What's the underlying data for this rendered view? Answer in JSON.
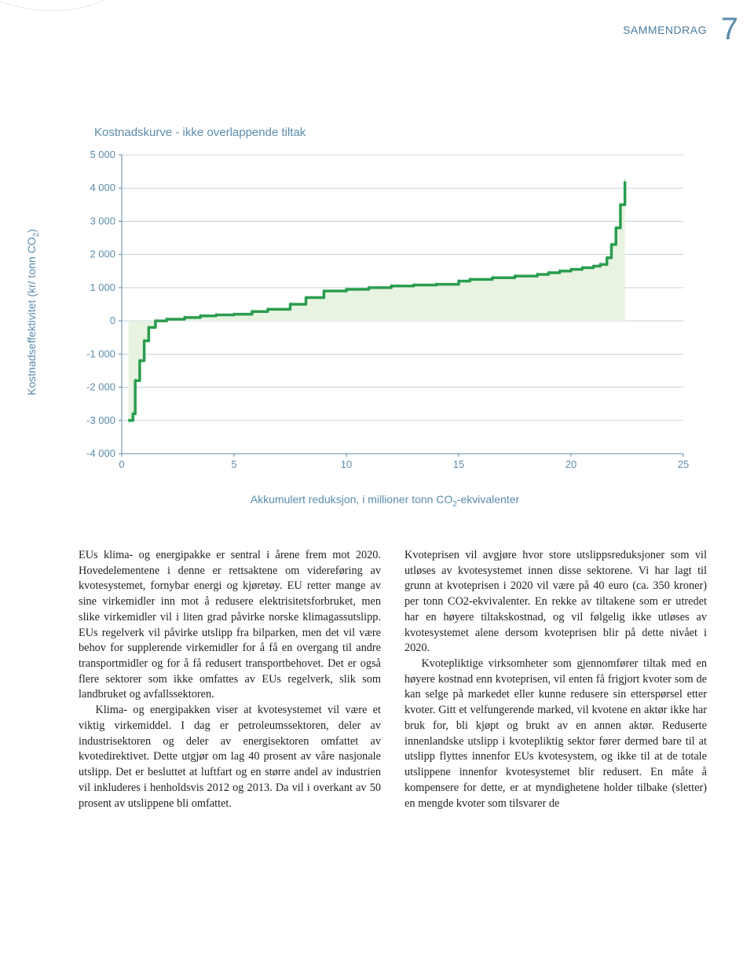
{
  "header": {
    "section_label": "SAMMENDRAG",
    "page_number": "7"
  },
  "chart": {
    "type": "step-line",
    "title": "Kostnadskurve - ikke overlappende tiltak",
    "ylabel": "Kostnadseffektivitet (kr/ tonn CO2)",
    "xlabel": "Akkumulert reduksjon, i millioner tonn CO2-ekvivalenter",
    "ylim": [
      -4000,
      5000
    ],
    "xlim": [
      0,
      25
    ],
    "ytick_step": 1000,
    "xtick_step": 5,
    "yticks": [
      "5 000",
      "4 000",
      "3 000",
      "2 000",
      "1 000",
      "0",
      "-1 000",
      "-2 000",
      "-3 000",
      "-4 000"
    ],
    "xticks": [
      "0",
      "5",
      "10",
      "15",
      "20",
      "25"
    ],
    "line_color": "#2a9d4e",
    "line_width": 3.5,
    "fill_color": "#e8f3e2",
    "fill_opacity": 1.0,
    "grid_color": "#a0b8c8",
    "grid_width": 0.6,
    "background_color": "#ffffff",
    "axis_color": "#5b8cac",
    "title_fontsize": 15,
    "label_fontsize": 14,
    "tick_fontsize": 13,
    "font_family": "Helvetica Neue",
    "font_weight": 300,
    "points": [
      [
        0.3,
        -3000
      ],
      [
        0.5,
        -2800
      ],
      [
        0.6,
        -1800
      ],
      [
        0.8,
        -1200
      ],
      [
        1.0,
        -600
      ],
      [
        1.2,
        -200
      ],
      [
        1.5,
        0
      ],
      [
        2.0,
        50
      ],
      [
        2.8,
        100
      ],
      [
        3.5,
        150
      ],
      [
        4.2,
        180
      ],
      [
        5.0,
        200
      ],
      [
        5.8,
        280
      ],
      [
        6.5,
        350
      ],
      [
        7.5,
        500
      ],
      [
        8.2,
        700
      ],
      [
        9.0,
        900
      ],
      [
        10.0,
        950
      ],
      [
        11.0,
        1000
      ],
      [
        12.0,
        1050
      ],
      [
        13.0,
        1080
      ],
      [
        14.0,
        1100
      ],
      [
        15.0,
        1200
      ],
      [
        15.5,
        1250
      ],
      [
        16.5,
        1300
      ],
      [
        17.5,
        1350
      ],
      [
        18.5,
        1400
      ],
      [
        19.0,
        1450
      ],
      [
        19.5,
        1500
      ],
      [
        20.0,
        1550
      ],
      [
        20.5,
        1600
      ],
      [
        21.0,
        1650
      ],
      [
        21.3,
        1700
      ],
      [
        21.6,
        1900
      ],
      [
        21.8,
        2300
      ],
      [
        22.0,
        2800
      ],
      [
        22.2,
        3500
      ],
      [
        22.4,
        4200
      ]
    ]
  },
  "body": {
    "col1_p1": "EUs klima- og energipakke er sentral i årene frem mot 2020. Hovedelementene i denne er rettsaktene om videreføring av kvotesystemet, fornybar energi og kjøretøy. EU retter mange av sine virkemidler inn mot å redusere elektrisitetsforbruket, men slike virkemidler vil i liten grad påvirke norske klimagassutslipp. EUs regelverk vil påvirke utslipp fra bilparken, men det vil være behov for supplerende virkemidler for å få en overgang til andre transportmidler og for å få redusert transportbehovet. Det er også flere sektorer som ikke omfattes av EUs regelverk, slik som landbruket og avfallssektoren.",
    "col1_p2": "Klima- og energipakken viser at kvotesystemet vil være et viktig virkemiddel. I dag er petroleumssektoren, deler av industrisektoren og deler av energisektoren omfattet av kvotedirektivet. Dette utgjør om lag 40 prosent av våre nasjonale utslipp. Det er besluttet at luftfart og en større andel av industrien vil inkluderes i henholdsvis 2012 og 2013. Da vil i overkant av 50 prosent av utslippene bli omfattet.",
    "col2_p1": "Kvoteprisen vil avgjøre hvor store utslippsreduksjoner som vil utløses av kvotesystemet innen disse sektorene. Vi har lagt til grunn at kvoteprisen i 2020 vil være på 40 euro (ca. 350 kroner) per tonn CO2-ekvivalenter. En rekke av tiltakene som er utredet har en høyere tiltakskostnad, og vil følgelig ikke utløses av kvotesystemet alene dersom kvoteprisen blir på dette nivået i 2020.",
    "col2_p2": "Kvotepliktige virksomheter som gjennomfører tiltak med en høyere kostnad enn kvoteprisen, vil enten få frigjort kvoter som de kan selge på markedet eller kunne redusere sin etterspørsel etter kvoter. Gitt et velfungerende marked, vil kvotene en aktør ikke har bruk for, bli kjøpt og brukt av en annen aktør. Reduserte innenlandske utslipp i kvotepliktig sektor fører dermed bare til at utslipp flyttes innenfor EUs kvotesystem, og ikke til at de totale utslippene innenfor kvotesystemet blir redusert. En måte å kompensere for dette, er at myndighetene holder tilbake (sletter) en mengde kvoter som tilsvarer de"
  }
}
